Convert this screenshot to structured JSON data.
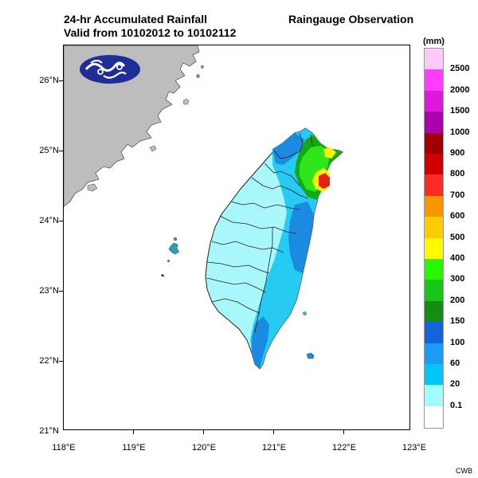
{
  "header": {
    "title_line1": "24-hr Accumulated Rainfall",
    "title_line2": "Valid from 10102012 to 10102112",
    "obs_title": "Raingauge Observation"
  },
  "axes": {
    "lat_labels": [
      "26°N",
      "25°N",
      "24°N",
      "23°N",
      "22°N",
      "21°N"
    ],
    "lon_labels": [
      "118°E",
      "119°E",
      "120°E",
      "121°E",
      "122°E",
      "123°E"
    ]
  },
  "legend": {
    "unit": "(mm)",
    "levels": [
      {
        "label": "2500",
        "color": "#ffc8f8"
      },
      {
        "label": "2000",
        "color": "#ff3cff"
      },
      {
        "label": "1500",
        "color": "#dd17dd"
      },
      {
        "label": "1000",
        "color": "#ab00ab"
      },
      {
        "label": "900",
        "color": "#a10000"
      },
      {
        "label": "800",
        "color": "#d00000"
      },
      {
        "label": "700",
        "color": "#f92c24"
      },
      {
        "label": "600",
        "color": "#f99500"
      },
      {
        "label": "500",
        "color": "#ffcc00"
      },
      {
        "label": "400",
        "color": "#fffa00"
      },
      {
        "label": "300",
        "color": "#27f800"
      },
      {
        "label": "200",
        "color": "#17c417"
      },
      {
        "label": "150",
        "color": "#138e13"
      },
      {
        "label": "100",
        "color": "#1662da"
      },
      {
        "label": "60",
        "color": "#199cf3"
      },
      {
        "label": "20",
        "color": "#00c5f5"
      },
      {
        "label": "0.1",
        "color": "#a0fffe"
      },
      {
        "label": "",
        "color": "#ffffff"
      }
    ]
  },
  "map": {
    "colors": {
      "mainland": "#bdbdbd",
      "light": "#a8f8fb",
      "cyan": "#27cbf2",
      "blue": "#1a8be0",
      "green": "#2fe61a",
      "dark_green": "#15a815",
      "yellow": "#fff200",
      "red": "#e3201a"
    },
    "logo_icon": "cwb-logo-icon"
  },
  "credit": "CWB"
}
